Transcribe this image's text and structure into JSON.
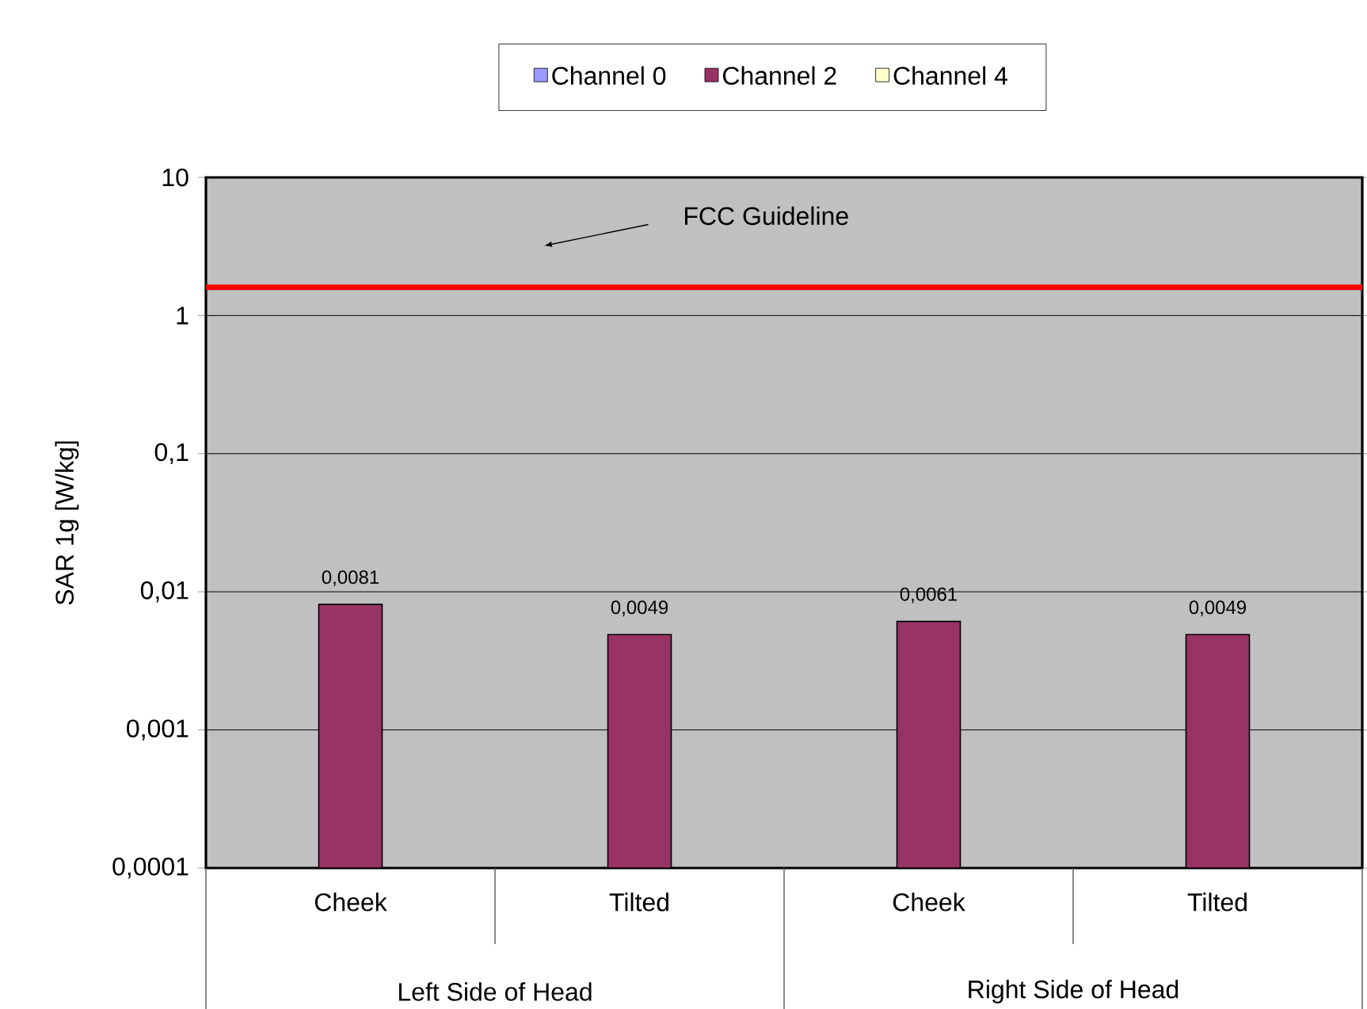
{
  "chart_data": {
    "type": "bar",
    "ylabel": "SAR 1g [W/kg]",
    "categories": [
      "Cheek",
      "Tilted",
      "Cheek",
      "Tilted"
    ],
    "series": [
      {
        "name": "Channel 0",
        "color": "#9999ff",
        "values": [
          null,
          null,
          null,
          null
        ]
      },
      {
        "name": "Channel 2",
        "color": "#993366",
        "values": [
          0.0081,
          0.0049,
          0.0061,
          0.0049
        ],
        "value_labels": [
          "0,0081",
          "0,0049",
          "0,0061",
          "0,0049"
        ]
      },
      {
        "name": "Channel 4",
        "color": "#ffffcc",
        "values": [
          null,
          null,
          null,
          null
        ]
      }
    ],
    "log": "y",
    "ylim": [
      0.0001,
      10
    ],
    "yticks": [
      {
        "value": 0.0001,
        "label": "0,0001"
      },
      {
        "value": 0.001,
        "label": "0,001"
      },
      {
        "value": 0.01,
        "label": "0,01"
      },
      {
        "value": 0.1,
        "label": "0,1"
      },
      1,
      10
    ],
    "grid": "y",
    "legend": "top",
    "ref_lines": [
      {
        "axis": "y",
        "value": 1.6,
        "label": "FCC Guideline",
        "color": "#ff0000"
      }
    ],
    "annotations": [
      "Left Side of Head",
      "Right Side of Head"
    ]
  }
}
